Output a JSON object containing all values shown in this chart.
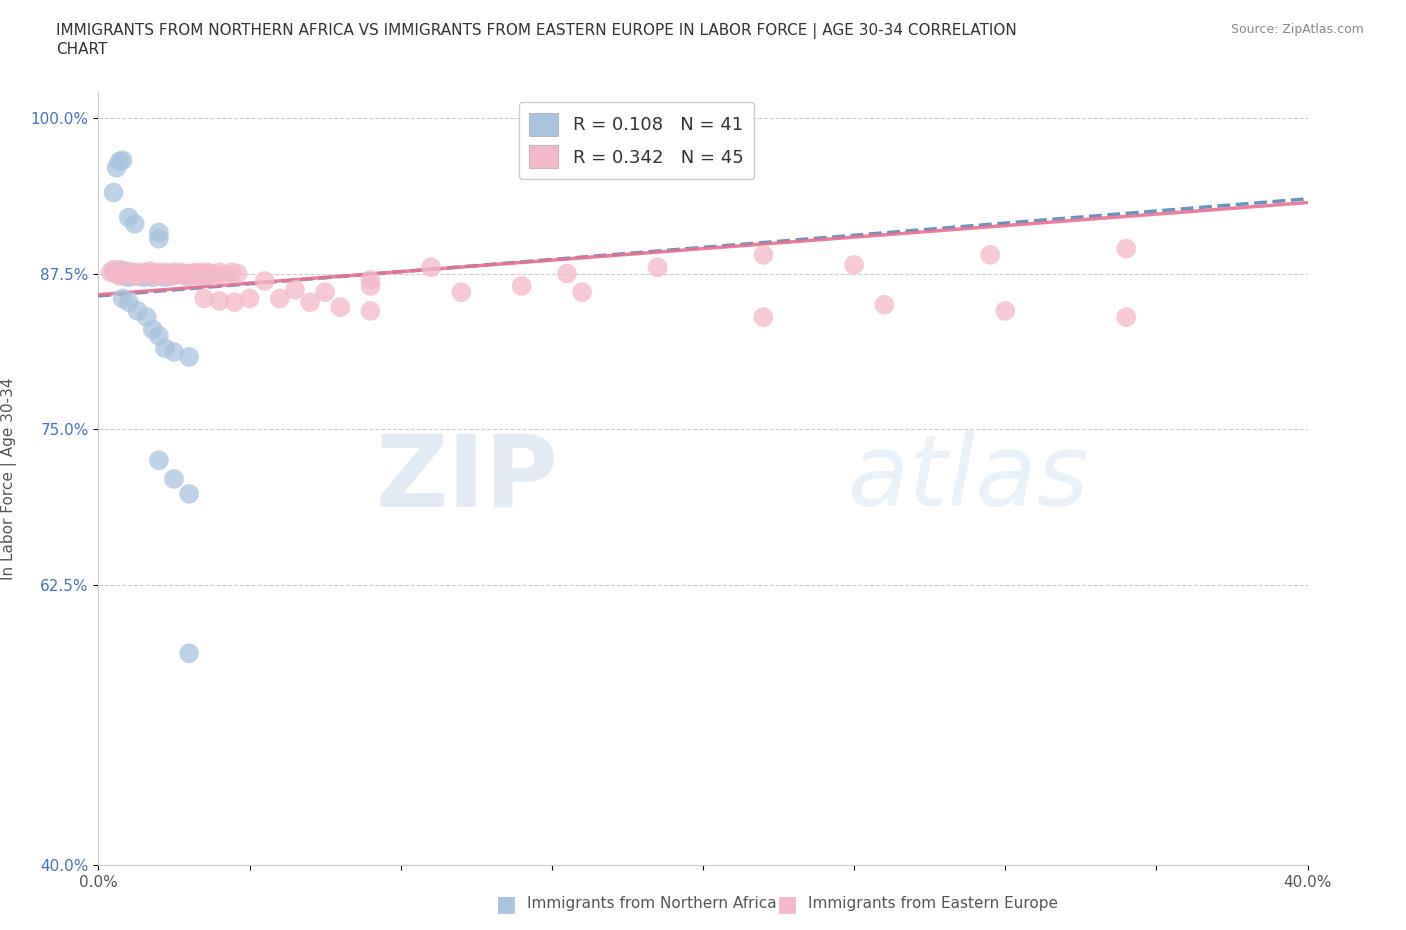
{
  "title": "IMMIGRANTS FROM NORTHERN AFRICA VS IMMIGRANTS FROM EASTERN EUROPE IN LABOR FORCE | AGE 30-34 CORRELATION\nCHART",
  "source": "Source: ZipAtlas.com",
  "xlabel": "",
  "ylabel": "In Labor Force | Age 30-34",
  "xlim": [
    0.0,
    0.4
  ],
  "ylim": [
    0.4,
    1.02
  ],
  "yticks": [
    0.4,
    0.625,
    0.75,
    0.875,
    1.0
  ],
  "ytick_labels": [
    "40.0%",
    "62.5%",
    "75.0%",
    "87.5%",
    "100.0%"
  ],
  "xtick_positions": [
    0.0,
    0.05,
    0.1,
    0.15,
    0.2,
    0.25,
    0.3,
    0.35,
    0.4
  ],
  "xtick_labels": [
    "0.0%",
    "",
    "",
    "",
    "",
    "",
    "",
    "",
    "40.0%"
  ],
  "legend_R1": "R = 0.108",
  "legend_N1": "N = 41",
  "legend_R2": "R = 0.342",
  "legend_N2": "N = 45",
  "color_blue": "#a8c4e0",
  "color_pink": "#f4b8c8",
  "color_blue_line": "#5588bb",
  "color_pink_line": "#e87090",
  "watermark_zip": "ZIP",
  "watermark_atlas": "atlas",
  "blue_scatter_x": [
    0.005,
    0.007,
    0.007,
    0.008,
    0.009,
    0.009,
    0.01,
    0.01,
    0.011,
    0.012,
    0.013,
    0.014,
    0.015,
    0.015,
    0.016,
    0.016,
    0.017,
    0.018,
    0.019,
    0.02,
    0.021,
    0.022,
    0.023,
    0.024,
    0.026,
    0.028,
    0.03,
    0.032,
    0.034,
    0.036,
    0.008,
    0.01,
    0.013,
    0.016,
    0.018,
    0.02,
    0.022,
    0.025,
    0.03,
    0.02,
    0.025,
    0.03
  ],
  "blue_scatter_y": [
    0.876,
    0.874,
    0.878,
    0.875,
    0.873,
    0.877,
    0.875,
    0.872,
    0.876,
    0.874,
    0.873,
    0.875,
    0.874,
    0.872,
    0.875,
    0.873,
    0.874,
    0.872,
    0.875,
    0.873,
    0.875,
    0.872,
    0.874,
    0.873,
    0.875,
    0.874,
    0.873,
    0.875,
    0.873,
    0.874,
    0.855,
    0.852,
    0.845,
    0.84,
    0.83,
    0.825,
    0.815,
    0.812,
    0.808,
    0.725,
    0.71,
    0.698
  ],
  "blue_scatter_x2": [
    0.005,
    0.006,
    0.007,
    0.008,
    0.01,
    0.012,
    0.02,
    0.02,
    0.03
  ],
  "blue_scatter_y2": [
    0.94,
    0.96,
    0.965,
    0.966,
    0.92,
    0.915,
    0.908,
    0.903,
    0.57
  ],
  "pink_scatter_x": [
    0.004,
    0.005,
    0.006,
    0.007,
    0.008,
    0.009,
    0.01,
    0.011,
    0.012,
    0.013,
    0.014,
    0.015,
    0.016,
    0.017,
    0.018,
    0.019,
    0.02,
    0.021,
    0.022,
    0.023,
    0.024,
    0.025,
    0.026,
    0.027,
    0.028,
    0.029,
    0.03,
    0.031,
    0.032,
    0.033,
    0.034,
    0.035,
    0.036,
    0.037,
    0.038,
    0.04,
    0.042,
    0.044,
    0.046,
    0.06,
    0.07,
    0.08,
    0.09,
    0.12,
    0.14,
    0.16,
    0.22,
    0.26,
    0.3,
    0.34
  ],
  "pink_scatter_y": [
    0.876,
    0.878,
    0.875,
    0.873,
    0.877,
    0.874,
    0.876,
    0.875,
    0.873,
    0.876,
    0.874,
    0.876,
    0.874,
    0.877,
    0.875,
    0.873,
    0.876,
    0.874,
    0.876,
    0.875,
    0.873,
    0.876,
    0.874,
    0.876,
    0.875,
    0.873,
    0.875,
    0.874,
    0.876,
    0.873,
    0.876,
    0.874,
    0.876,
    0.875,
    0.873,
    0.876,
    0.874,
    0.876,
    0.875,
    0.855,
    0.852,
    0.848,
    0.845,
    0.86,
    0.865,
    0.86,
    0.84,
    0.85,
    0.845,
    0.84
  ],
  "pink_scatter_x2": [
    0.055,
    0.09,
    0.11,
    0.155,
    0.185,
    0.22,
    0.25,
    0.295,
    0.34,
    0.065,
    0.075,
    0.09,
    0.035,
    0.04,
    0.045,
    0.05
  ],
  "pink_scatter_y2": [
    0.869,
    0.87,
    0.88,
    0.875,
    0.88,
    0.89,
    0.882,
    0.89,
    0.895,
    0.862,
    0.86,
    0.865,
    0.855,
    0.853,
    0.852,
    0.855
  ],
  "blue_line_x": [
    0.0,
    0.4
  ],
  "blue_line_y": [
    0.857,
    0.935
  ],
  "pink_line_x": [
    0.0,
    0.4
  ],
  "pink_line_y": [
    0.858,
    0.932
  ]
}
